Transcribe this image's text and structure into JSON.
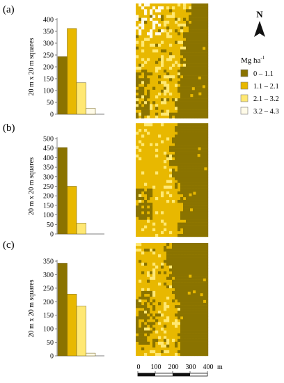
{
  "figure": {
    "north_label": "N",
    "legend_title": "Mg ha",
    "legend_title_sup": "-1",
    "legend_items": [
      {
        "label": "0 – 1.1",
        "color": "#8a7300"
      },
      {
        "label": "1.1 – 2.1",
        "color": "#e8b800"
      },
      {
        "label": "2.1 – 3.2",
        "color": "#ffe873"
      },
      {
        "label": "3.2 – 4.3",
        "color": "#fffbe8"
      }
    ],
    "scale_bar": {
      "ticks": [
        "0",
        "100",
        "200",
        "300",
        "400"
      ],
      "unit": "m"
    }
  },
  "chart_data": [
    {
      "type": "bar",
      "panel_label": "(a)",
      "ylabel": "20 m x 20 m squares",
      "ylim": [
        0,
        400
      ],
      "yticks": [
        0,
        50,
        100,
        150,
        200,
        250,
        300,
        350,
        400
      ],
      "categories": [
        "0 – 1.1",
        "1.1 – 2.1",
        "2.1 – 3.2",
        "3.2 – 4.3"
      ],
      "values": [
        243,
        362,
        133,
        25
      ]
    },
    {
      "type": "bar",
      "panel_label": "(b)",
      "ylabel": "20 m x 20 m squares",
      "ylim": [
        0,
        500
      ],
      "yticks": [
        0,
        50,
        100,
        150,
        200,
        250,
        300,
        350,
        400,
        450,
        500
      ],
      "categories": [
        "0 – 1.1",
        "1.1 – 2.1",
        "2.1 – 3.2",
        "3.2 – 4.3"
      ],
      "values": [
        453,
        250,
        57,
        0
      ]
    },
    {
      "type": "bar",
      "panel_label": "(c)",
      "ylabel": "20 m x 20 m squares",
      "ylim": [
        0,
        350
      ],
      "yticks": [
        0,
        50,
        100,
        150,
        200,
        250,
        300,
        350
      ],
      "categories": [
        "0 – 1.1",
        "1.1 – 2.1",
        "2.1 – 3.2",
        "3.2 – 4.3"
      ],
      "values": [
        342,
        228,
        184,
        10
      ]
    }
  ]
}
